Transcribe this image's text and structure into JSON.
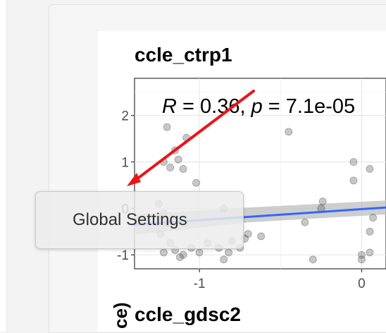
{
  "panel_title": "ccle_ctrp1",
  "next_panel_title": "ccle_gdsc2",
  "ylabel_fragment": "ce)",
  "tooltip_label": "Global Settings",
  "annotation": {
    "r_sym": "R",
    "r_val": " = 0.36, ",
    "p_sym": "p",
    "p_val": " = 7.1e-05"
  },
  "colors": {
    "points": "#555555",
    "regression_line": "#3366ff",
    "confidence_band": "#bdbdbd",
    "arrow": "#e8161b"
  },
  "chart_data": {
    "type": "scatter",
    "title": "ccle_ctrp1",
    "x_ticks": [
      "-1",
      "0"
    ],
    "y_ticks": [
      "2",
      "1",
      "0",
      "-1"
    ],
    "xlim": [
      -1.4,
      0.15
    ],
    "ylim": [
      -1.3,
      2.8
    ],
    "grid": true,
    "points": [
      {
        "x": -1.2,
        "y": 1.75
      },
      {
        "x": -0.45,
        "y": 1.65
      },
      {
        "x": -1.08,
        "y": 1.52
      },
      {
        "x": -1.22,
        "y": 1.0
      },
      {
        "x": -1.15,
        "y": 1.25
      },
      {
        "x": -1.13,
        "y": 1.05
      },
      {
        "x": -1.18,
        "y": 0.88
      },
      {
        "x": -1.1,
        "y": 0.85
      },
      {
        "x": -1.02,
        "y": 0.55
      },
      {
        "x": -0.05,
        "y": 1.0
      },
      {
        "x": 0.05,
        "y": 0.85
      },
      {
        "x": -0.05,
        "y": 0.6
      },
      {
        "x": -1.25,
        "y": 0.1
      },
      {
        "x": -1.22,
        "y": -0.1
      },
      {
        "x": -1.2,
        "y": -0.32
      },
      {
        "x": -1.24,
        "y": -0.55
      },
      {
        "x": -1.18,
        "y": -0.75
      },
      {
        "x": -1.22,
        "y": -0.95
      },
      {
        "x": -1.15,
        "y": -0.9
      },
      {
        "x": -1.1,
        "y": -1.0
      },
      {
        "x": -1.05,
        "y": -0.85
      },
      {
        "x": -1.12,
        "y": -1.05
      },
      {
        "x": -1.0,
        "y": -0.95
      },
      {
        "x": -0.95,
        "y": -0.75
      },
      {
        "x": -0.88,
        "y": -0.85
      },
      {
        "x": -0.85,
        "y": -1.1
      },
      {
        "x": -0.82,
        "y": -0.95
      },
      {
        "x": -0.8,
        "y": -0.7
      },
      {
        "x": -0.75,
        "y": -0.85
      },
      {
        "x": -0.72,
        "y": -0.65
      },
      {
        "x": -0.7,
        "y": -0.55
      },
      {
        "x": -0.85,
        "y": 0.0
      },
      {
        "x": -0.62,
        "y": -0.6
      },
      {
        "x": -0.35,
        "y": -0.3
      },
      {
        "x": -0.25,
        "y": 0.0
      },
      {
        "x": -0.24,
        "y": 0.15
      },
      {
        "x": -0.3,
        "y": -1.1
      },
      {
        "x": 0.0,
        "y": -1.0
      },
      {
        "x": 0.05,
        "y": -0.95
      },
      {
        "x": 0.0,
        "y": -1.1
      },
      {
        "x": 0.05,
        "y": -0.5
      },
      {
        "x": 0.07,
        "y": -0.2
      }
    ],
    "regression": {
      "x": [
        -1.4,
        0.15
      ],
      "y": [
        -0.35,
        0.02
      ]
    },
    "confidence_band": {
      "x": [
        -1.4,
        -0.7,
        0.15
      ],
      "lower": [
        -0.57,
        -0.3,
        -0.13
      ],
      "upper": [
        -0.13,
        0.02,
        0.17
      ]
    }
  }
}
